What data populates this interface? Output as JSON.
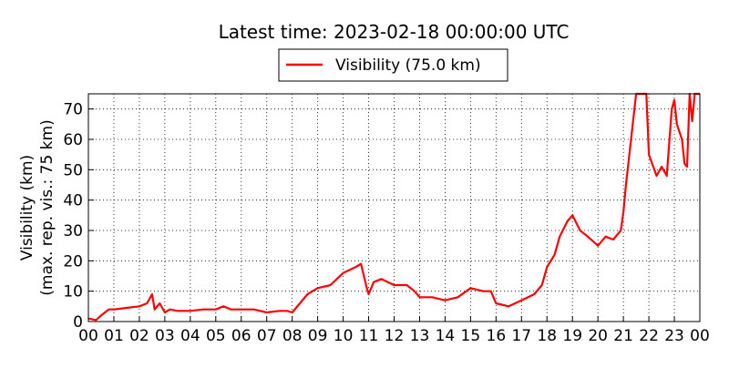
{
  "chart_data": {
    "type": "line",
    "title": "Latest time: 2023-02-18 00:00:00 UTC",
    "y_label": [
      "Visibility (km)",
      "(max. rep. vis.: 75 km)"
    ],
    "x": [
      0,
      0.3,
      0.5,
      0.8,
      1,
      1.5,
      2,
      2.3,
      2.5,
      2.6,
      2.8,
      3,
      3.2,
      3.5,
      4,
      4.5,
      5,
      5.3,
      5.6,
      6,
      6.5,
      7,
      7.5,
      7.8,
      8,
      8.3,
      8.6,
      9,
      9.5,
      10,
      10.5,
      10.7,
      10.9,
      11,
      11.2,
      11.5,
      12,
      12.5,
      12.8,
      13,
      13.5,
      14,
      14.5,
      15,
      15.5,
      15.8,
      16,
      16.5,
      17,
      17.5,
      17.8,
      18,
      18.3,
      18.5,
      18.8,
      19,
      19.3,
      19.6,
      20,
      20.3,
      20.6,
      20.9,
      21,
      21.1,
      21.3,
      21.5,
      21.9,
      22,
      22.3,
      22.5,
      22.7,
      22.9,
      23,
      23.1,
      23.3,
      23.4,
      23.5,
      23.6,
      23.7,
      23.8,
      24
    ],
    "series": [
      {
        "name": "Visibility (75.0 km)",
        "color": "#ff0000",
        "values": [
          1,
          0.5,
          2,
          4,
          4,
          4.5,
          5,
          6,
          9,
          4,
          6,
          3,
          4,
          3.5,
          3.5,
          4,
          4,
          5,
          4,
          4,
          4,
          3,
          3.5,
          3.5,
          3,
          6,
          9,
          11,
          12,
          16,
          18,
          19,
          12,
          9,
          13,
          14,
          12,
          12,
          10,
          8,
          8,
          7,
          8,
          11,
          10,
          10,
          6,
          5,
          7,
          9,
          12,
          18,
          22,
          28,
          33,
          35,
          30,
          28,
          25,
          28,
          27,
          30,
          36,
          45,
          60,
          75,
          75,
          55,
          48,
          51,
          48,
          70,
          73,
          65,
          60,
          52,
          51,
          75,
          66,
          75,
          75
        ]
      }
    ],
    "xlim": [
      0,
      24
    ],
    "ylim": [
      0,
      75
    ],
    "xticks": [
      {
        "value": 0,
        "label": "00"
      },
      {
        "value": 1,
        "label": "01"
      },
      {
        "value": 2,
        "label": "02"
      },
      {
        "value": 3,
        "label": "03"
      },
      {
        "value": 4,
        "label": "04"
      },
      {
        "value": 5,
        "label": "05"
      },
      {
        "value": 6,
        "label": "06"
      },
      {
        "value": 7,
        "label": "07"
      },
      {
        "value": 8,
        "label": "08"
      },
      {
        "value": 9,
        "label": "09"
      },
      10,
      11,
      12,
      13,
      14,
      15,
      16,
      17,
      18,
      19,
      20,
      21,
      22,
      23,
      {
        "value": 24,
        "label": "00"
      }
    ],
    "yticks": [
      0,
      10,
      20,
      30,
      40,
      50,
      60,
      70
    ],
    "grid": true
  }
}
